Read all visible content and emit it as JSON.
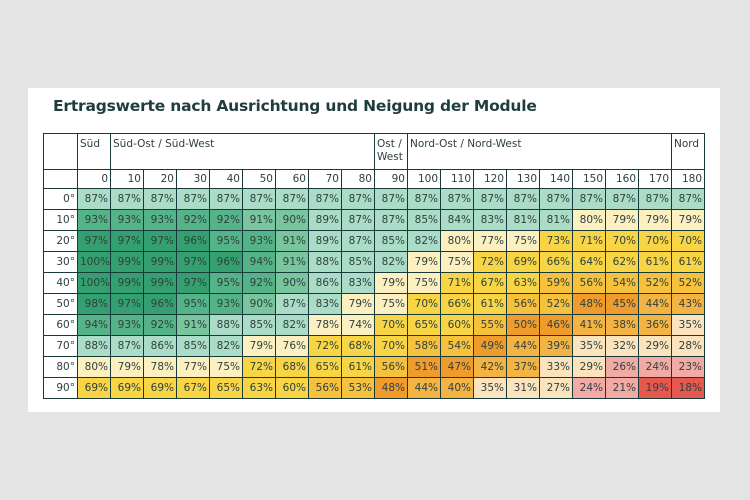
{
  "title": "Ertragswerte nach Ausrichtung und Neigung der Module",
  "chart_data": {
    "type": "heatmap",
    "title": "Ertragswerte nach Ausrichtung und Neigung der Module",
    "direction_groups": [
      {
        "label": "Süd",
        "span": 1
      },
      {
        "label": "Süd-Ost / Süd-West",
        "span": 8
      },
      {
        "label": "Ost / West",
        "span": 1
      },
      {
        "label": "Nord-Ost / Nord-West",
        "span": 8
      },
      {
        "label": "Nord",
        "span": 1
      }
    ],
    "columns": [
      "0",
      "10",
      "20",
      "30",
      "40",
      "50",
      "60",
      "70",
      "80",
      "90",
      "100",
      "110",
      "120",
      "130",
      "140",
      "150",
      "160",
      "170",
      "180"
    ],
    "rows": [
      "0°",
      "10°",
      "20°",
      "30°",
      "40°",
      "50°",
      "60°",
      "70°",
      "80°",
      "90°"
    ],
    "unit": "%",
    "values": [
      [
        87,
        87,
        87,
        87,
        87,
        87,
        87,
        87,
        87,
        87,
        87,
        87,
        87,
        87,
        87,
        87,
        87,
        87,
        87
      ],
      [
        93,
        93,
        93,
        92,
        92,
        91,
        90,
        89,
        87,
        87,
        85,
        84,
        83,
        81,
        81,
        80,
        79,
        79,
        79
      ],
      [
        97,
        97,
        97,
        96,
        95,
        93,
        91,
        89,
        87,
        85,
        82,
        80,
        77,
        75,
        73,
        71,
        70,
        70,
        70
      ],
      [
        100,
        99,
        99,
        97,
        96,
        94,
        91,
        88,
        85,
        82,
        79,
        75,
        72,
        69,
        66,
        64,
        62,
        61,
        61
      ],
      [
        100,
        99,
        99,
        97,
        95,
        92,
        90,
        86,
        83,
        79,
        75,
        71,
        67,
        63,
        59,
        56,
        54,
        52,
        52
      ],
      [
        98,
        97,
        96,
        95,
        93,
        90,
        87,
        83,
        79,
        75,
        70,
        66,
        61,
        56,
        52,
        48,
        45,
        44,
        43
      ],
      [
        94,
        93,
        92,
        91,
        88,
        85,
        82,
        78,
        74,
        70,
        65,
        60,
        55,
        50,
        46,
        41,
        38,
        36,
        35
      ],
      [
        88,
        87,
        86,
        85,
        82,
        79,
        76,
        72,
        68,
        70,
        58,
        54,
        49,
        44,
        39,
        35,
        32,
        29,
        28
      ],
      [
        80,
        79,
        78,
        77,
        75,
        72,
        68,
        65,
        61,
        56,
        51,
        47,
        42,
        37,
        33,
        29,
        26,
        24,
        23
      ],
      [
        69,
        69,
        69,
        67,
        65,
        63,
        60,
        56,
        53,
        48,
        44,
        40,
        35,
        31,
        27,
        24,
        21,
        19,
        18
      ]
    ],
    "color_scale": [
      {
        "min": 96,
        "color": "#35a06f"
      },
      {
        "min": 92,
        "color": "#55b487"
      },
      {
        "min": 90,
        "color": "#78c59e"
      },
      {
        "min": 81,
        "color": "#abdcc7"
      },
      {
        "min": 74,
        "color": "#fcefc0"
      },
      {
        "min": 60,
        "color": "#f8d544"
      },
      {
        "min": 52,
        "color": "#f6c13d"
      },
      {
        "min": 45,
        "color": "#ef9c2c"
      },
      {
        "min": 36,
        "color": "#f4b443"
      },
      {
        "min": 27,
        "color": "#fbe4bd"
      },
      {
        "min": 20,
        "color": "#f2aaa5"
      },
      {
        "min": 0,
        "color": "#e4584e"
      }
    ]
  }
}
